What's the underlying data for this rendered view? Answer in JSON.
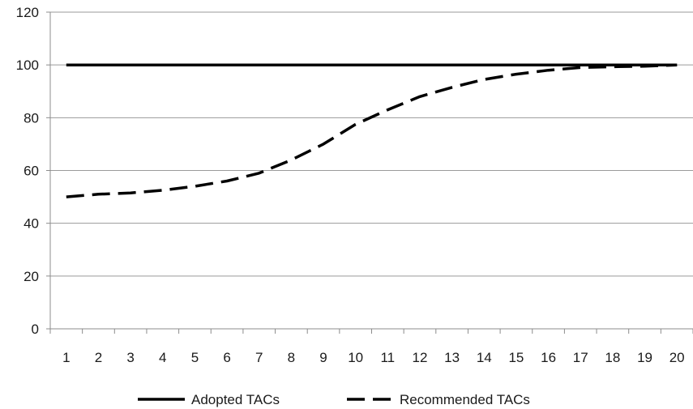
{
  "chart_data": {
    "type": "line",
    "title": "",
    "xlabel": "",
    "ylabel": "",
    "x": [
      1,
      2,
      3,
      4,
      5,
      6,
      7,
      8,
      9,
      10,
      11,
      12,
      13,
      14,
      15,
      16,
      17,
      18,
      19,
      20
    ],
    "ylim": [
      0,
      120
    ],
    "yticks": [
      0,
      20,
      40,
      60,
      80,
      100,
      120
    ],
    "grid": true,
    "legend_position": "bottom",
    "series": [
      {
        "name": "Adopted TACs",
        "style": "solid",
        "color": "#000000",
        "values": [
          100,
          100,
          100,
          100,
          100,
          100,
          100,
          100,
          100,
          100,
          100,
          100,
          100,
          100,
          100,
          100,
          100,
          100,
          100,
          100
        ]
      },
      {
        "name": "Recommended TACs",
        "style": "dashed",
        "color": "#000000",
        "values": [
          50,
          51,
          51.5,
          52.5,
          54,
          56,
          59,
          64,
          70,
          77.5,
          83,
          88,
          91.5,
          94.5,
          96.5,
          98,
          99,
          99.3,
          99.5,
          100
        ]
      }
    ]
  }
}
